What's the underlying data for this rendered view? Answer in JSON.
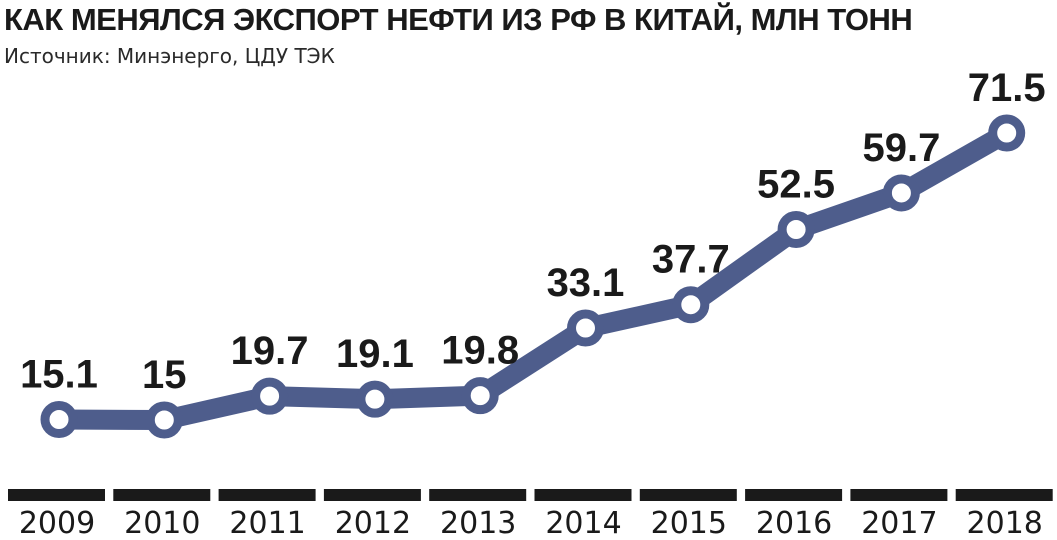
{
  "chart_data": {
    "type": "line",
    "title": "КАК МЕНЯЛСЯ ЭКСПОРТ НЕФТИ ИЗ РФ В КИТАЙ, МЛН ТОНН",
    "subtitle": "Источник: Минэнерго, ЦДУ ТЭК",
    "categories": [
      "2009",
      "2010",
      "2011",
      "2012",
      "2013",
      "2014",
      "2015",
      "2016",
      "2017",
      "2018"
    ],
    "values": [
      15.1,
      15,
      19.7,
      19.1,
      19.8,
      33.1,
      37.7,
      52.5,
      59.7,
      71.5
    ],
    "value_labels": [
      "15.1",
      "15",
      "19.7",
      "19.1",
      "19.8",
      "33.1",
      "37.7",
      "52.5",
      "59.7",
      "71.5"
    ],
    "ylim": [
      0,
      80
    ],
    "grid": false,
    "legend": "none",
    "colors": {
      "line": "#4e5d8c",
      "marker_fill": "#ffffff",
      "axis_bars": "#1a1a1a",
      "text": "#1a1a1a"
    }
  }
}
